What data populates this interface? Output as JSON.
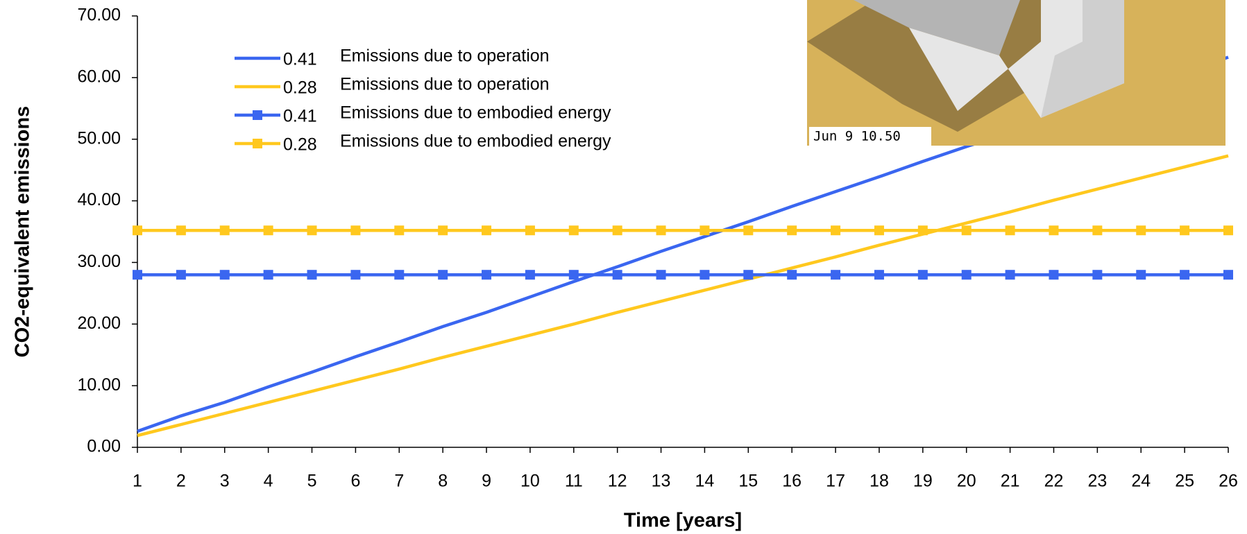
{
  "chart_data": {
    "type": "line",
    "x_label": "Time [years]",
    "y_label": "CO2-equivalent emissions",
    "x": [
      1,
      2,
      3,
      4,
      5,
      6,
      7,
      8,
      9,
      10,
      11,
      12,
      13,
      14,
      15,
      16,
      17,
      18,
      19,
      20,
      21,
      22,
      23,
      24,
      25,
      26
    ],
    "xlim": [
      1,
      26
    ],
    "ylim": [
      0,
      70
    ],
    "yticks": [
      {
        "value": 0,
        "label": "0.00"
      },
      {
        "value": 10,
        "label": "10.00"
      },
      {
        "value": 20,
        "label": "20.00"
      },
      {
        "value": 30,
        "label": "30.00"
      },
      {
        "value": 40,
        "label": "40.00"
      },
      {
        "value": 50,
        "label": "50.00"
      },
      {
        "value": 60,
        "label": "60.00"
      },
      {
        "value": 70,
        "label": "70.00"
      }
    ],
    "grid": false,
    "legend_position": "upper-left",
    "inset_caption": "Jun 9 10.50",
    "series": [
      {
        "ratio": "0.41",
        "name": "Emissions due to operation",
        "color": "#3a66f0",
        "marker": "none",
        "values": [
          2.6,
          5.1,
          7.3,
          9.8,
          12.2,
          14.7,
          17.1,
          19.6,
          21.9,
          24.4,
          26.9,
          29.3,
          31.8,
          34.2,
          36.6,
          39.1,
          41.5,
          43.9,
          46.4,
          48.8,
          51.1,
          53.6,
          56.1,
          58.5,
          60.9,
          63.3
        ]
      },
      {
        "ratio": "0.28",
        "name": "Emissions due to operation",
        "color": "#ffc81e",
        "marker": "none",
        "values": [
          1.9,
          3.7,
          5.5,
          7.3,
          9.1,
          10.9,
          12.7,
          14.6,
          16.4,
          18.2,
          20.0,
          21.9,
          23.7,
          25.5,
          27.3,
          29.1,
          30.9,
          32.8,
          34.6,
          36.4,
          38.2,
          40.1,
          41.9,
          43.7,
          45.5,
          47.3
        ]
      },
      {
        "ratio": "0.41",
        "name": "Emissions due to embodied energy",
        "color": "#3a66f0",
        "marker": "square",
        "values": [
          28.0,
          28.0,
          28.0,
          28.0,
          28.0,
          28.0,
          28.0,
          28.0,
          28.0,
          28.0,
          28.0,
          28.0,
          28.0,
          28.0,
          28.0,
          28.0,
          28.0,
          28.0,
          28.0,
          28.0,
          28.0,
          28.0,
          28.0,
          28.0,
          28.0,
          28.0
        ]
      },
      {
        "ratio": "0.28",
        "name": "Emissions due to embodied energy",
        "color": "#ffc81e",
        "marker": "square",
        "values": [
          35.2,
          35.2,
          35.2,
          35.2,
          35.2,
          35.2,
          35.2,
          35.2,
          35.2,
          35.2,
          35.2,
          35.2,
          35.2,
          35.2,
          35.2,
          35.2,
          35.2,
          35.2,
          35.2,
          35.2,
          35.2,
          35.2,
          35.2,
          35.2,
          35.2,
          35.2
        ]
      }
    ]
  }
}
